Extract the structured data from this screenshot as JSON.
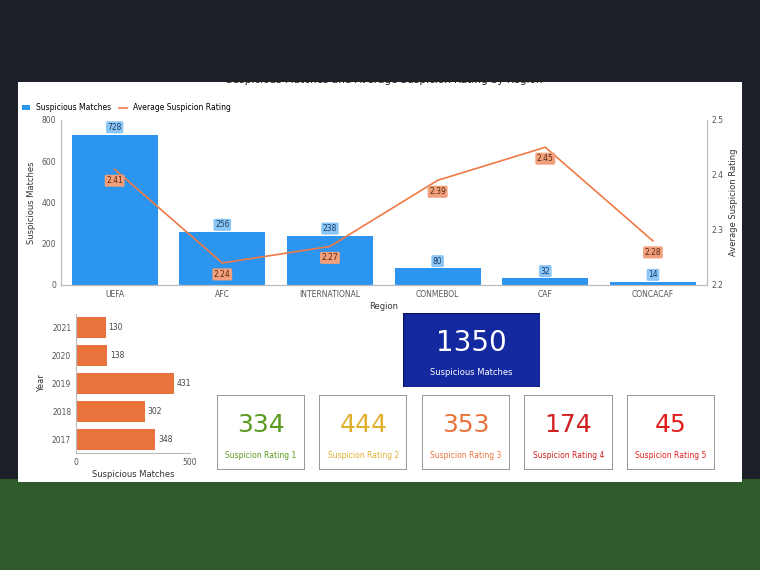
{
  "chart_data": [
    {
      "type": "bar",
      "title": "Suspicious Matches and Average Suspicion Rating by Region",
      "xlabel": "Region",
      "ylabel": "Suspicious Matches",
      "y2label": "Average Suspicion Rating",
      "categories": [
        "UEFA",
        "AFC",
        "INTERNATIONAL",
        "CONMEBOL",
        "CAF",
        "CONCACAF"
      ],
      "series": [
        {
          "name": "Suspicious Matches",
          "type": "bar",
          "color": "#2b95f0",
          "values": [
            728,
            256,
            238,
            80,
            32,
            14
          ]
        },
        {
          "name": "Average Suspicion Rating",
          "type": "line",
          "axis": "y2",
          "color": "#f07a45",
          "values": [
            2.41,
            2.24,
            2.27,
            2.39,
            2.45,
            2.28
          ]
        }
      ],
      "ylim": [
        0,
        800
      ],
      "yticks": [
        0,
        200,
        400,
        600,
        800
      ],
      "y2lim": [
        2.2,
        2.5
      ],
      "y2ticks": [
        2.2,
        2.3,
        2.4,
        2.5
      ],
      "legend": "upper left",
      "data_labels": true
    },
    {
      "type": "bar",
      "orientation": "horizontal",
      "xlabel": "Suspicious Matches",
      "ylabel": "Year",
      "categories": [
        "2021",
        "2020",
        "2019",
        "2018",
        "2017"
      ],
      "values": [
        130,
        138,
        431,
        302,
        348
      ],
      "color": "#e8743b",
      "xlim": [
        0,
        500
      ],
      "xticks": [
        0,
        500
      ],
      "data_labels": true
    }
  ],
  "total_card": {
    "value": 1350,
    "label": "Suspicious Matches",
    "color": "#1428a0"
  },
  "rating_cards": [
    {
      "value": 334,
      "label": "Suspicion Rating 1",
      "color": "#5a9a1e"
    },
    {
      "value": 444,
      "label": "Suspicion Rating 2",
      "color": "#e0b030"
    },
    {
      "value": 353,
      "label": "Suspicion Rating 3",
      "color": "#e8743b"
    },
    {
      "value": 174,
      "label": "Suspicion Rating 4",
      "color": "#d02020"
    },
    {
      "value": 45,
      "label": "Suspicion Rating 5",
      "color": "#e02020"
    }
  ]
}
